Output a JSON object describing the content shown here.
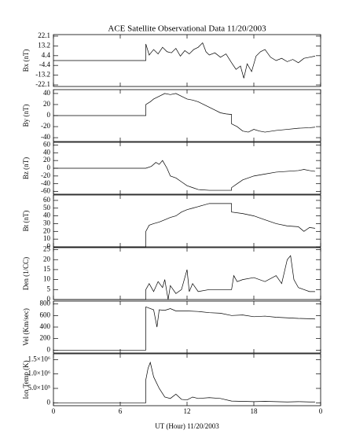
{
  "title": "ACE Satellite Observational Data   11/20/2003",
  "x_axis": {
    "xlim": [
      0,
      24
    ],
    "xticks": [
      0,
      6,
      12,
      18,
      {
        "value": 24,
        "label": "0"
      }
    ],
    "label": "UT (Hour)   11/20/2003"
  },
  "chart_data": [
    {
      "type": "line",
      "y_label": "Bx (nT)",
      "ylim": [
        -23.5,
        23.5
      ],
      "yticks": [
        22.1,
        13.2,
        4.4,
        -4.4,
        -13.2,
        -22.1
      ],
      "color": "#000000",
      "x": [
        0,
        8.3,
        8.3,
        8.6,
        9,
        9.4,
        9.8,
        10.2,
        10.6,
        11,
        11.4,
        11.8,
        12.2,
        12.6,
        13,
        13.4,
        13.7,
        14,
        14.5,
        15,
        15.5,
        16,
        16.4,
        16.8,
        17.1,
        17.4,
        17.8,
        18.2,
        18.6,
        19,
        19.5,
        20,
        20.5,
        21,
        21.5,
        22,
        22.5,
        23,
        23.5
      ],
      "values": [
        0,
        0,
        15,
        5,
        10,
        6,
        12,
        8,
        7,
        11,
        4,
        9,
        6,
        10,
        12,
        16,
        8,
        5,
        7,
        3,
        6,
        -2,
        -8,
        -5,
        -16,
        -3,
        -10,
        4,
        8,
        10,
        3,
        0,
        2,
        -1,
        1,
        -2,
        2,
        3,
        4
      ]
    },
    {
      "type": "line",
      "y_label": "By (nT)",
      "ylim": [
        -47,
        47
      ],
      "yticks": [
        40,
        20,
        0,
        -20,
        -40
      ],
      "color": "#000000",
      "x": [
        0,
        8.3,
        8.3,
        8.7,
        9,
        9.5,
        10,
        10.5,
        11,
        11.5,
        12,
        12.5,
        13,
        13.5,
        14,
        14.5,
        15,
        15.5,
        16,
        16,
        16.5,
        17,
        17.5,
        18,
        18.5,
        19,
        20,
        21,
        22,
        23,
        23.5
      ],
      "values": [
        0,
        0,
        20,
        25,
        30,
        35,
        40,
        38,
        40,
        35,
        30,
        28,
        25,
        20,
        15,
        10,
        5,
        3,
        2,
        -15,
        -20,
        -28,
        -30,
        -25,
        -28,
        -30,
        -27,
        -25,
        -23,
        -22,
        -21
      ]
    },
    {
      "type": "line",
      "y_label": "Bz (nT)",
      "ylim": [
        -67,
        67
      ],
      "yticks": [
        60,
        40,
        20,
        0,
        -20,
        -40,
        -60
      ],
      "color": "#000000",
      "x": [
        0,
        8.3,
        8.3,
        8.8,
        9.2,
        9.5,
        9.8,
        10.2,
        10.5,
        11,
        11.5,
        12,
        12.5,
        13,
        14,
        15,
        16,
        16,
        16.5,
        17,
        17.5,
        18,
        19,
        20,
        21,
        22,
        22.5,
        23,
        23.5
      ],
      "values": [
        0,
        0,
        0,
        5,
        15,
        10,
        20,
        0,
        -20,
        -25,
        -35,
        -45,
        -50,
        -55,
        -57,
        -57,
        -57,
        -50,
        -40,
        -30,
        -25,
        -20,
        -15,
        -10,
        -8,
        -6,
        -3,
        -6,
        -8
      ]
    },
    {
      "type": "line",
      "y_label": "Bt (nT)",
      "ylim": [
        0,
        67
      ],
      "yticks": [
        0,
        10,
        20,
        30,
        40,
        50,
        60
      ],
      "color": "#000000",
      "x": [
        0,
        8.3,
        8.3,
        8.6,
        9,
        9.5,
        10,
        10.5,
        11,
        11.5,
        12,
        12.5,
        13,
        13.5,
        14,
        15,
        16,
        16,
        17,
        18,
        19,
        20,
        21,
        22,
        22.5,
        23,
        23.5
      ],
      "values": [
        0,
        0,
        20,
        28,
        30,
        32,
        35,
        38,
        40,
        45,
        48,
        50,
        52,
        54,
        56,
        56,
        56,
        45,
        43,
        40,
        35,
        30,
        27,
        26,
        20,
        25,
        24
      ]
    },
    {
      "type": "line",
      "y_label": "Den (1/CC)",
      "ylim": [
        0,
        26
      ],
      "yticks": [
        0,
        5,
        10,
        15,
        20,
        25
      ],
      "color": "#000000",
      "x": [
        0,
        8.3,
        8.3,
        8.6,
        9,
        9.4,
        9.8,
        10,
        10.3,
        10.5,
        11,
        11.5,
        12,
        12.2,
        12.5,
        13,
        14,
        14.5,
        15,
        16,
        16.2,
        16.5,
        17,
        18,
        19,
        20,
        20.5,
        21,
        21.3,
        21.6,
        22,
        22.5,
        23,
        23.5
      ],
      "values": [
        0,
        0,
        5,
        8,
        4,
        9,
        6,
        10,
        0,
        7,
        3,
        5,
        15,
        4,
        8,
        4,
        5,
        5,
        5,
        5,
        12,
        9,
        10,
        11,
        9,
        12,
        8,
        20,
        22,
        10,
        6,
        5,
        4,
        4
      ]
    },
    {
      "type": "line",
      "y_label": "Vel (Km/sec)",
      "ylim": [
        -50,
        850
      ],
      "yticks": [
        0,
        200,
        400,
        600,
        800
      ],
      "color": "#000000",
      "x": [
        0,
        8.3,
        8.3,
        9,
        9.3,
        9.5,
        10,
        10.5,
        11,
        12,
        13,
        14,
        15,
        16,
        17,
        18,
        19,
        20,
        21,
        22,
        23,
        23.5
      ],
      "values": [
        0,
        0,
        750,
        700,
        400,
        700,
        690,
        720,
        680,
        680,
        670,
        650,
        640,
        600,
        610,
        580,
        590,
        570,
        560,
        550,
        545,
        540
      ]
    },
    {
      "type": "line",
      "y_label": "Ion Temp (K)",
      "ylim": [
        -100000,
        1700000
      ],
      "yticks": [
        0,
        {
          "value": 500000,
          "label": "5.0×10⁵"
        },
        {
          "value": 1000000,
          "label": "1.0×10⁶"
        },
        {
          "value": 1500000,
          "label": "1.5×10⁶"
        }
      ],
      "color": "#000000",
      "x": [
        0,
        8.3,
        8.3,
        8.5,
        8.7,
        9,
        9.5,
        10,
        10.5,
        11,
        11.5,
        12,
        12.5,
        13,
        14,
        15,
        16,
        17,
        18,
        19,
        20,
        21,
        22,
        23,
        23.5
      ],
      "values": [
        0,
        0,
        800000,
        1200000,
        1400000,
        900000,
        500000,
        200000,
        150000,
        300000,
        120000,
        100000,
        200000,
        150000,
        180000,
        150000,
        60000,
        50000,
        40000,
        50000,
        40000,
        30000,
        40000,
        30000,
        30000
      ]
    }
  ]
}
